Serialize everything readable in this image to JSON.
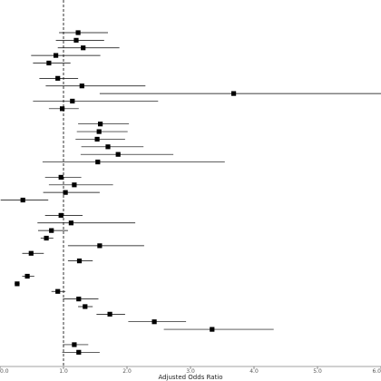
{
  "chart_data": {
    "type": "scatter",
    "subtype": "forest-plot",
    "xlabel": "Adjusted Odds Ratio",
    "ylabel": "",
    "title": "",
    "xlim": [
      0.0,
      6.0
    ],
    "x_ticks": [
      {
        "value": 0.0,
        "label": "0.0"
      },
      {
        "value": 1.0,
        "label": "1.0"
      },
      {
        "value": 2.0,
        "label": "2.0"
      },
      {
        "value": 3.0,
        "label": "3.0"
      },
      {
        "value": 4.0,
        "label": "4.0"
      },
      {
        "value": 5.0,
        "label": "5.0"
      },
      {
        "value": 6.0,
        "label": "6.0"
      }
    ],
    "reference_line": {
      "x": 1.0,
      "style": "dashed"
    },
    "grid": false,
    "marker": "square",
    "color": "#000000",
    "groups": [
      {
        "rows": [
          {
            "or": 1.23,
            "lo": 0.93,
            "hi": 1.7
          },
          {
            "or": 1.2,
            "lo": 0.88,
            "hi": 1.64
          },
          {
            "or": 1.31,
            "lo": 0.91,
            "hi": 1.88
          },
          {
            "or": 0.88,
            "lo": 0.49,
            "hi": 1.58
          },
          {
            "or": 0.77,
            "lo": 0.52,
            "hi": 1.11
          }
        ]
      },
      {
        "rows": [
          {
            "or": 0.91,
            "lo": 0.62,
            "hi": 1.23
          },
          {
            "or": 1.29,
            "lo": 0.72,
            "hi": 2.29
          },
          {
            "or": 3.68,
            "lo": 1.57,
            "hi": 6.0
          },
          {
            "or": 1.14,
            "lo": 0.52,
            "hi": 2.49
          },
          {
            "or": 0.98,
            "lo": 0.77,
            "hi": 1.24
          }
        ]
      },
      {
        "rows": [
          {
            "or": 1.58,
            "lo": 1.23,
            "hi": 2.03
          },
          {
            "or": 1.56,
            "lo": 1.21,
            "hi": 2.01
          },
          {
            "or": 1.53,
            "lo": 1.19,
            "hi": 1.97
          },
          {
            "or": 1.7,
            "lo": 1.28,
            "hi": 2.26
          },
          {
            "or": 1.86,
            "lo": 1.27,
            "hi": 2.73
          },
          {
            "or": 1.54,
            "lo": 0.67,
            "hi": 3.54
          }
        ]
      },
      {
        "rows": [
          {
            "or": 0.96,
            "lo": 0.71,
            "hi": 1.28
          },
          {
            "or": 1.17,
            "lo": 0.77,
            "hi": 1.78
          },
          {
            "or": 1.03,
            "lo": 0.68,
            "hi": 1.57
          },
          {
            "or": 0.36,
            "lo": 0.01,
            "hi": 0.76
          }
        ]
      },
      {
        "rows": [
          {
            "or": 0.96,
            "lo": 0.71,
            "hi": 1.3
          },
          {
            "or": 1.12,
            "lo": 0.59,
            "hi": 2.13
          },
          {
            "or": 0.81,
            "lo": 0.6,
            "hi": 1.07
          },
          {
            "or": 0.73,
            "lo": 0.64,
            "hi": 0.84
          },
          {
            "or": 1.57,
            "lo": 1.07,
            "hi": 2.27
          },
          {
            "or": 0.49,
            "lo": 0.35,
            "hi": 0.69
          },
          {
            "or": 1.25,
            "lo": 1.07,
            "hi": 1.46
          }
        ]
      },
      {
        "rows": [
          {
            "or": 0.43,
            "lo": 0.35,
            "hi": 0.54
          },
          {
            "or": 0.27,
            "lo": 0.23,
            "hi": 0.31
          },
          {
            "or": 0.91,
            "lo": 0.81,
            "hi": 1.03
          },
          {
            "or": 1.24,
            "lo": 0.99,
            "hi": 1.55
          },
          {
            "or": 1.34,
            "lo": 1.23,
            "hi": 1.46
          },
          {
            "or": 1.73,
            "lo": 1.52,
            "hi": 1.97
          },
          {
            "or": 2.43,
            "lo": 2.02,
            "hi": 2.93
          },
          {
            "or": 3.34,
            "lo": 2.58,
            "hi": 4.31
          }
        ]
      },
      {
        "rows": [
          {
            "or": 1.17,
            "lo": 0.99,
            "hi": 1.39
          },
          {
            "or": 1.24,
            "lo": 0.98,
            "hi": 1.57
          }
        ]
      }
    ]
  }
}
